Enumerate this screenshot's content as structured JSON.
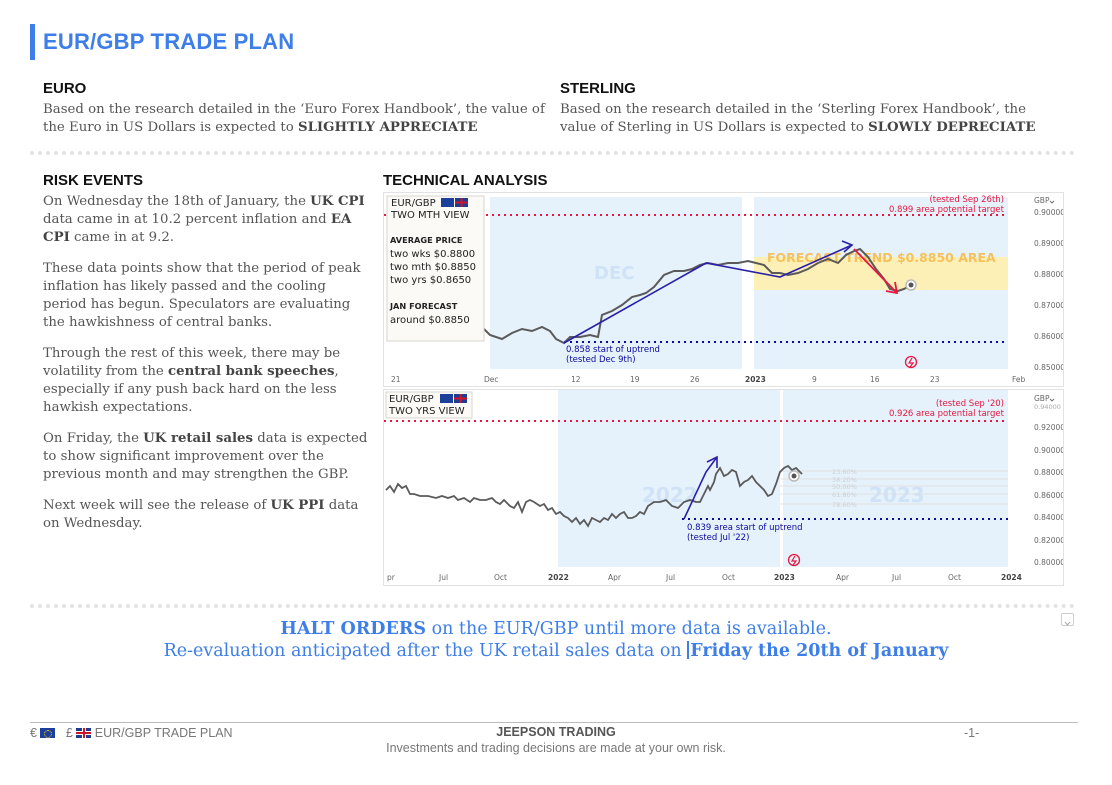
{
  "doc_title": "EUR/GBP TRADE PLAN",
  "euro": {
    "heading": "EURO",
    "text_pre": "Based on the research detailed in the ‘Euro Forex Handbook’, the value of the Euro in US Dollars is expected to ",
    "text_bold": "SLIGHTLY APPRECIATE"
  },
  "sterling": {
    "heading": "STERLING",
    "text_pre": "Based on the research detailed in the ‘Sterling Forex Handbook’, the value of Sterling in US Dollars is expected to ",
    "text_bold": "SLOWLY DEPRECIATE"
  },
  "risk_events": {
    "heading": "RISK EVENTS",
    "p1_a": "On Wednesday the 18th of January, the ",
    "p1_b": "UK CPI",
    "p1_c": " data came in at 10.2 percent inflation and ",
    "p1_d": "EA CPI",
    "p1_e": " came in at 9.2.",
    "p2": "These data points show that the period of peak inflation has likely passed and the cooling period has begun. Speculators are evaluating the hawkishness of central banks.",
    "p3_a": "Through the rest of this week, there may be volatility from the ",
    "p3_b": "central bank speeches",
    "p3_c": ", especially if any push back hard on the less hawkish expectations.",
    "p4_a": "On Friday, the ",
    "p4_b": "UK retail sales",
    "p4_c": " data is expected to show significant improvement over the previous month and may strengthen the GBP.",
    "p5_a": "Next week will see the release of ",
    "p5_b": "UK PPI",
    "p5_c": " data on Wednesday."
  },
  "technical_analysis": {
    "heading": "TECHNICAL ANALYSIS",
    "top_chart": {
      "label_line1": "EUR/GBP",
      "label_line2": "TWO MTH VIEW",
      "avg_heading": "AVERAGE PRICE",
      "avg_lines": [
        "two wks $0.8800",
        "two mth $0.8850",
        "two yrs $0.8650"
      ],
      "forecast_heading": "JAN FORECAST",
      "forecast_value": "around $0.8850",
      "target_note1": "(tested Sep 26th)",
      "target_note2": "0.899 area potential target",
      "uptrend_note1": "0.858 start of uptrend",
      "uptrend_note2": "(tested Dec 9th)",
      "forecast_zone_label": "FORECAST TREND $0.8850 AREA",
      "month_watermark": "DEC",
      "currency_label": "GBP",
      "y_ticks": [
        "0.90000",
        "0.89000",
        "0.88000",
        "0.87000",
        "0.86000",
        "0.85000"
      ],
      "x_ticks": [
        "21",
        "Dec",
        "12",
        "19",
        "26",
        "2023",
        "9",
        "16",
        "23",
        "Feb"
      ]
    },
    "bottom_chart": {
      "label_line1": "EUR/GBP",
      "label_line2": "TWO YRS VIEW",
      "target_note1": "(tested Sep '20)",
      "target_note2": "0.926 area potential target",
      "uptrend_note1": "0.839 area start of uptrend",
      "uptrend_note2": "(tested Jul '22)",
      "watermark_left": "2022",
      "watermark_right": "2023",
      "fib_levels": [
        "23.60%",
        "38.20%",
        "50.00%",
        "61.80%",
        "78.60%"
      ],
      "currency_label": "GBP",
      "y_ticks": [
        "0.94000",
        "0.92000",
        "0.90000",
        "0.88000",
        "0.86000",
        "0.84000",
        "0.82000",
        "0.80000"
      ],
      "x_ticks": [
        "pr",
        "Jul",
        "Oct",
        "2022",
        "Apr",
        "Jul",
        "Oct",
        "2023",
        "Apr",
        "Jul",
        "Oct",
        "2024"
      ]
    }
  },
  "halt": {
    "line1_bold": "HALT ORDERS",
    "line1_rest": " on the EUR/GBP until more data is available.",
    "line2_pre": "Re-evaluation anticipated after the UK retail sales data on ",
    "line2_bold": "Friday the 20th of January"
  },
  "footer": {
    "euro_symbol": "€",
    "pound_symbol": "£",
    "left_label": "EUR/GBP TRADE PLAN",
    "center_title": "JEEPSON TRADING",
    "disclaimer": "Investments and trading decisions are made at your own risk.",
    "page": "-1-"
  },
  "colors": {
    "accent": "#3d7ee8",
    "target_red": "#e8173f",
    "uptrend_navy": "#0a0a9c",
    "price_line": "#5a5a5a",
    "zone_blue": "#e5f1fb",
    "zone_yellow": "#fdf0b6"
  }
}
